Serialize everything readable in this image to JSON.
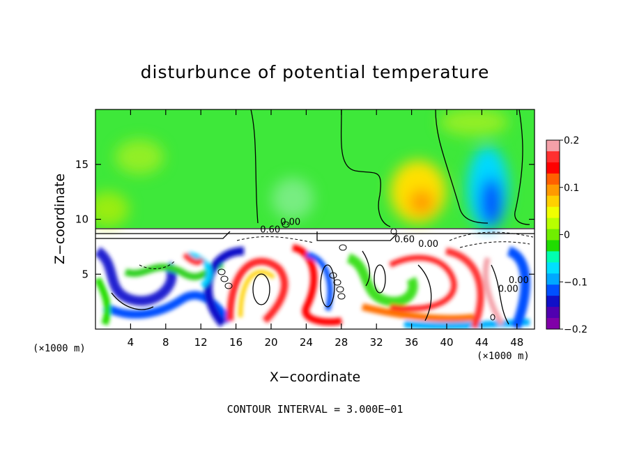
{
  "chart_data": {
    "type": "heatmap",
    "title": "disturbunce of potential temperature",
    "xlabel": "X−coordinate",
    "ylabel": "Z−coordinate",
    "x_unit_left": "(×1000 m)",
    "x_unit_right": "(×1000 m)",
    "footer": "CONTOUR INTERVAL = 3.000E−01",
    "xlim": [
      0,
      50
    ],
    "ylim": [
      0,
      20
    ],
    "x_ticks": [
      4,
      8,
      12,
      16,
      20,
      24,
      28,
      32,
      36,
      40,
      44,
      48
    ],
    "y_ticks": [
      5,
      10,
      15
    ],
    "colorbar": {
      "min": -0.2,
      "max": 0.2,
      "tick_values": [
        0.2,
        0.1,
        0,
        -0.1,
        -0.2
      ],
      "tick_labels": [
        "0.2",
        "0.1",
        "0",
        "−0.1",
        "−0.2"
      ],
      "colors": [
        "#f4a0a8",
        "#ff3030",
        "#ff0000",
        "#ff6000",
        "#ff9a00",
        "#ffd000",
        "#f0ff00",
        "#b8ff00",
        "#70ee00",
        "#20dd00",
        "#00ffb0",
        "#00e0ff",
        "#00a8ff",
        "#0050ff",
        "#1010c8",
        "#5000b0",
        "#8000a8"
      ]
    },
    "contour_labels": [
      {
        "text": "0.60",
        "x": 19.9,
        "y": 8.8
      },
      {
        "text": "0.00",
        "x": 22.2,
        "y": 9.5
      },
      {
        "text": "0.60",
        "x": 35.2,
        "y": 7.9
      },
      {
        "text": "0.00",
        "x": 37.9,
        "y": 7.5
      },
      {
        "text": "0.00",
        "x": 47.0,
        "y": 3.4
      },
      {
        "text": "0.00",
        "x": 48.2,
        "y": 4.2
      }
    ],
    "grid": false
  }
}
